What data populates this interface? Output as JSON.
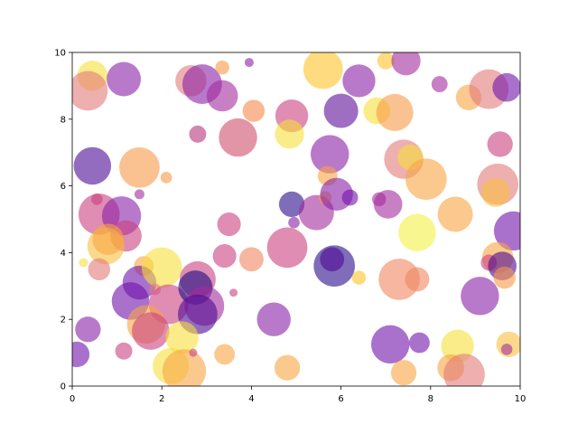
{
  "chart_data": {
    "type": "scatter",
    "title": "",
    "xlabel": "",
    "ylabel": "",
    "xlim": [
      0,
      10
    ],
    "ylim": [
      0,
      10
    ],
    "grid": false,
    "legend": "none",
    "colormap": "plasma",
    "alpha": 0.6,
    "x_ticks": [
      "0",
      "2",
      "4",
      "6",
      "8",
      "10"
    ],
    "y_ticks": [
      "0",
      "2",
      "4",
      "6",
      "8",
      "10"
    ],
    "points": [
      {
        "x": 0.45,
        "y": 9.3,
        "size": 280,
        "color": "#f7e03a"
      },
      {
        "x": 0.35,
        "y": 8.85,
        "size": 480,
        "color": "#e3797a"
      },
      {
        "x": 1.15,
        "y": 9.2,
        "size": 360,
        "color": "#8a1fa6"
      },
      {
        "x": 2.65,
        "y": 9.15,
        "size": 300,
        "color": "#e3797a"
      },
      {
        "x": 2.9,
        "y": 9.05,
        "size": 480,
        "color": "#8a1fa6"
      },
      {
        "x": 3.35,
        "y": 9.55,
        "size": 60,
        "color": "#f89a47"
      },
      {
        "x": 3.35,
        "y": 8.7,
        "size": 300,
        "color": "#a32c9c"
      },
      {
        "x": 3.95,
        "y": 9.7,
        "size": 25,
        "color": "#8a1fa6"
      },
      {
        "x": 5.6,
        "y": 9.5,
        "size": 480,
        "color": "#fdc328"
      },
      {
        "x": 6.4,
        "y": 9.15,
        "size": 330,
        "color": "#8a1fa6"
      },
      {
        "x": 7.0,
        "y": 9.75,
        "size": 90,
        "color": "#fdc328"
      },
      {
        "x": 7.45,
        "y": 9.75,
        "size": 260,
        "color": "#a32c9c"
      },
      {
        "x": 8.2,
        "y": 9.05,
        "size": 80,
        "color": "#a32c9c"
      },
      {
        "x": 8.85,
        "y": 8.65,
        "size": 200,
        "color": "#f8a542"
      },
      {
        "x": 9.3,
        "y": 8.9,
        "size": 480,
        "color": "#e3797a"
      },
      {
        "x": 9.7,
        "y": 8.95,
        "size": 250,
        "color": "#7013aa"
      },
      {
        "x": 2.8,
        "y": 7.55,
        "size": 90,
        "color": "#b5367a"
      },
      {
        "x": 3.7,
        "y": 7.45,
        "size": 450,
        "color": "#cf4f6a"
      },
      {
        "x": 4.05,
        "y": 8.25,
        "size": 150,
        "color": "#f5884b"
      },
      {
        "x": 4.9,
        "y": 8.1,
        "size": 330,
        "color": "#c9417e"
      },
      {
        "x": 4.85,
        "y": 7.55,
        "size": 260,
        "color": "#f7e03a"
      },
      {
        "x": 6.0,
        "y": 8.25,
        "size": 360,
        "color": "#5b0d9a"
      },
      {
        "x": 6.8,
        "y": 8.25,
        "size": 220,
        "color": "#f7e03a"
      },
      {
        "x": 7.2,
        "y": 8.2,
        "size": 420,
        "color": "#f89a47"
      },
      {
        "x": 9.55,
        "y": 7.25,
        "size": 200,
        "color": "#c9417e"
      },
      {
        "x": 0.45,
        "y": 6.6,
        "size": 430,
        "color": "#4d0a94"
      },
      {
        "x": 1.5,
        "y": 6.55,
        "size": 500,
        "color": "#f89a47"
      },
      {
        "x": 2.1,
        "y": 6.25,
        "size": 40,
        "color": "#f89a47"
      },
      {
        "x": 5.75,
        "y": 6.95,
        "size": 450,
        "color": "#8a1fa6"
      },
      {
        "x": 5.7,
        "y": 6.3,
        "size": 120,
        "color": "#f8a542"
      },
      {
        "x": 7.4,
        "y": 6.8,
        "size": 470,
        "color": "#e3797a"
      },
      {
        "x": 7.55,
        "y": 6.85,
        "size": 200,
        "color": "#f7e03a"
      },
      {
        "x": 7.9,
        "y": 6.2,
        "size": 520,
        "color": "#f8a542"
      },
      {
        "x": 9.5,
        "y": 6.05,
        "size": 520,
        "color": "#e3797a"
      },
      {
        "x": 9.45,
        "y": 5.8,
        "size": 250,
        "color": "#f8c03f"
      },
      {
        "x": 0.55,
        "y": 5.6,
        "size": 40,
        "color": "#c9417e"
      },
      {
        "x": 1.5,
        "y": 5.75,
        "size": 30,
        "color": "#a32c9c"
      },
      {
        "x": 0.6,
        "y": 5.15,
        "size": 520,
        "color": "#c9417e"
      },
      {
        "x": 1.1,
        "y": 5.1,
        "size": 470,
        "color": "#8a1fa6"
      },
      {
        "x": 1.2,
        "y": 4.5,
        "size": 300,
        "color": "#c9417e"
      },
      {
        "x": 0.75,
        "y": 4.2,
        "size": 420,
        "color": "#f8c03f"
      },
      {
        "x": 0.8,
        "y": 4.4,
        "size": 300,
        "color": "#f8a542"
      },
      {
        "x": 0.25,
        "y": 3.7,
        "size": 25,
        "color": "#f7e03a"
      },
      {
        "x": 0.6,
        "y": 3.5,
        "size": 150,
        "color": "#e3797a"
      },
      {
        "x": 3.5,
        "y": 4.85,
        "size": 170,
        "color": "#c9417e"
      },
      {
        "x": 3.4,
        "y": 3.9,
        "size": 170,
        "color": "#c9417e"
      },
      {
        "x": 4.0,
        "y": 3.8,
        "size": 180,
        "color": "#f08560"
      },
      {
        "x": 4.9,
        "y": 5.45,
        "size": 200,
        "color": "#2b0b8a"
      },
      {
        "x": 4.95,
        "y": 4.9,
        "size": 40,
        "color": "#8a1fa6"
      },
      {
        "x": 5.45,
        "y": 5.2,
        "size": 380,
        "color": "#a32c9c"
      },
      {
        "x": 4.8,
        "y": 4.15,
        "size": 500,
        "color": "#c9417e"
      },
      {
        "x": 5.65,
        "y": 5.65,
        "size": 50,
        "color": "#f8a542"
      },
      {
        "x": 5.9,
        "y": 5.75,
        "size": 330,
        "color": "#8a1fa6"
      },
      {
        "x": 6.2,
        "y": 5.65,
        "size": 80,
        "color": "#7013aa"
      },
      {
        "x": 6.85,
        "y": 5.6,
        "size": 60,
        "color": "#a32c9c"
      },
      {
        "x": 7.05,
        "y": 5.45,
        "size": 250,
        "color": "#a32c9c"
      },
      {
        "x": 8.55,
        "y": 5.15,
        "size": 380,
        "color": "#f8a542"
      },
      {
        "x": 7.7,
        "y": 4.6,
        "size": 430,
        "color": "#f4f044"
      },
      {
        "x": 9.85,
        "y": 4.65,
        "size": 470,
        "color": "#7013aa"
      },
      {
        "x": 9.5,
        "y": 3.85,
        "size": 300,
        "color": "#f8a542"
      },
      {
        "x": 9.3,
        "y": 3.7,
        "size": 80,
        "color": "#c9417e"
      },
      {
        "x": 9.6,
        "y": 3.6,
        "size": 250,
        "color": "#4d0a94"
      },
      {
        "x": 9.65,
        "y": 3.25,
        "size": 150,
        "color": "#f89a47"
      },
      {
        "x": 5.85,
        "y": 3.6,
        "size": 520,
        "color": "#2b0b8a"
      },
      {
        "x": 5.8,
        "y": 3.8,
        "size": 180,
        "color": "#4d0a94"
      },
      {
        "x": 6.4,
        "y": 3.25,
        "size": 60,
        "color": "#fdc328"
      },
      {
        "x": 7.3,
        "y": 3.2,
        "size": 520,
        "color": "#f08560"
      },
      {
        "x": 7.7,
        "y": 3.2,
        "size": 180,
        "color": "#f08560"
      },
      {
        "x": 1.6,
        "y": 3.6,
        "size": 120,
        "color": "#f8a542"
      },
      {
        "x": 1.5,
        "y": 3.1,
        "size": 350,
        "color": "#7013aa"
      },
      {
        "x": 2.0,
        "y": 3.55,
        "size": 500,
        "color": "#f7e03a"
      },
      {
        "x": 1.85,
        "y": 2.9,
        "size": 40,
        "color": "#e3797a"
      },
      {
        "x": 1.3,
        "y": 2.55,
        "size": 430,
        "color": "#7013aa"
      },
      {
        "x": 2.15,
        "y": 2.45,
        "size": 480,
        "color": "#c9417e"
      },
      {
        "x": 2.8,
        "y": 3.2,
        "size": 400,
        "color": "#c9417e"
      },
      {
        "x": 2.75,
        "y": 2.95,
        "size": 360,
        "color": "#1b0a80"
      },
      {
        "x": 2.95,
        "y": 2.4,
        "size": 480,
        "color": "#a32c9c"
      },
      {
        "x": 2.8,
        "y": 2.15,
        "size": 480,
        "color": "#4d0a94"
      },
      {
        "x": 1.65,
        "y": 1.85,
        "size": 450,
        "color": "#f8a542"
      },
      {
        "x": 1.75,
        "y": 1.65,
        "size": 430,
        "color": "#c9417e"
      },
      {
        "x": 0.35,
        "y": 1.7,
        "size": 200,
        "color": "#8a1fa6"
      },
      {
        "x": 0.1,
        "y": 0.95,
        "size": 200,
        "color": "#7013aa"
      },
      {
        "x": 1.15,
        "y": 1.05,
        "size": 90,
        "color": "#c9417e"
      },
      {
        "x": 2.45,
        "y": 1.45,
        "size": 330,
        "color": "#f7e03a"
      },
      {
        "x": 2.2,
        "y": 0.6,
        "size": 400,
        "color": "#f7e03a"
      },
      {
        "x": 2.5,
        "y": 0.45,
        "size": 580,
        "color": "#f8a542"
      },
      {
        "x": 2.7,
        "y": 1.0,
        "size": 20,
        "color": "#c9417e"
      },
      {
        "x": 3.4,
        "y": 0.95,
        "size": 130,
        "color": "#f8a542"
      },
      {
        "x": 3.6,
        "y": 2.8,
        "size": 20,
        "color": "#c9417e"
      },
      {
        "x": 4.5,
        "y": 2.0,
        "size": 350,
        "color": "#8a1fa6"
      },
      {
        "x": 4.8,
        "y": 0.55,
        "size": 200,
        "color": "#f8a542"
      },
      {
        "x": 7.1,
        "y": 1.25,
        "size": 450,
        "color": "#7013aa"
      },
      {
        "x": 7.75,
        "y": 1.3,
        "size": 130,
        "color": "#7013aa"
      },
      {
        "x": 7.4,
        "y": 0.4,
        "size": 200,
        "color": "#f8a542"
      },
      {
        "x": 8.6,
        "y": 1.2,
        "size": 330,
        "color": "#f7e03a"
      },
      {
        "x": 8.45,
        "y": 0.55,
        "size": 220,
        "color": "#f8a542"
      },
      {
        "x": 8.75,
        "y": 0.35,
        "size": 520,
        "color": "#e3797a"
      },
      {
        "x": 9.1,
        "y": 2.7,
        "size": 450,
        "color": "#8a1fa6"
      },
      {
        "x": 9.75,
        "y": 1.25,
        "size": 200,
        "color": "#f8c03f"
      },
      {
        "x": 9.7,
        "y": 1.1,
        "size": 40,
        "color": "#a32c9c"
      }
    ]
  }
}
